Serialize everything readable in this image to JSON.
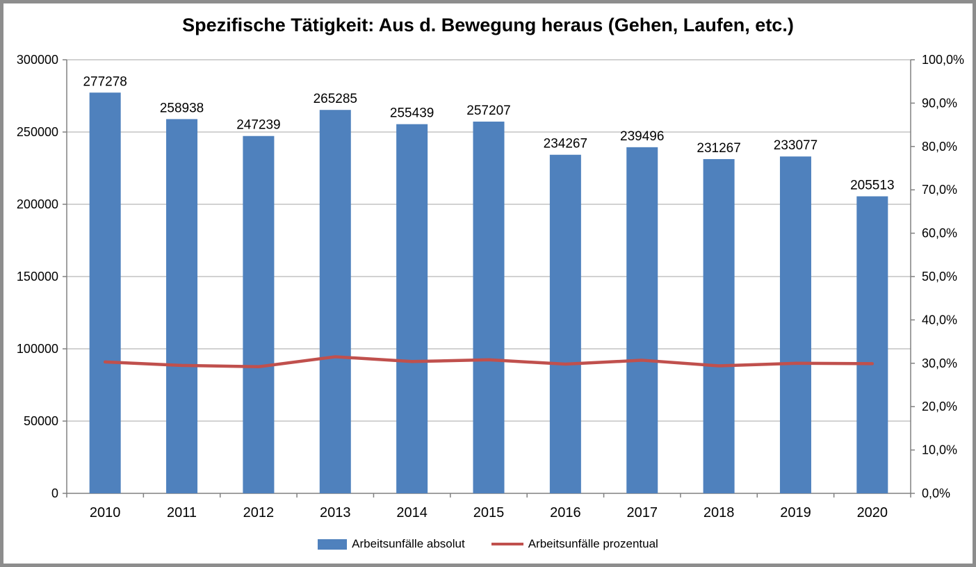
{
  "title": "Spezifische Tätigkeit: Aus d. Bewegung heraus (Gehen, Laufen, etc.)",
  "colors": {
    "bar": "#4F81BD",
    "line": "#C0504D",
    "axis": "#808080",
    "gridline": "#a6a6a6",
    "text": "#000000",
    "frame_border": "#8d8d8d",
    "background": "#ffffff"
  },
  "chart_data": {
    "type": "bar",
    "categories": [
      "2010",
      "2011",
      "2012",
      "2013",
      "2014",
      "2015",
      "2016",
      "2017",
      "2018",
      "2019",
      "2020"
    ],
    "series": [
      {
        "name": "Arbeitsunfälle absolut",
        "type": "bar",
        "axis": "left",
        "color": "#4F81BD",
        "values": [
          277278,
          258938,
          247239,
          265285,
          255439,
          257207,
          234267,
          239496,
          231267,
          233077,
          205513
        ],
        "data_labels": [
          "277278",
          "258938",
          "247239",
          "265285",
          "255439",
          "257207",
          "234267",
          "239496",
          "231267",
          "233077",
          "205513"
        ]
      },
      {
        "name": "Arbeitsunfälle prozentual",
        "type": "line",
        "axis": "right",
        "color": "#C0504D",
        "values_percent": [
          30.3,
          29.5,
          29.2,
          31.5,
          30.4,
          30.8,
          29.8,
          30.7,
          29.4,
          30.0,
          29.9
        ]
      }
    ],
    "title": "Spezifische Tätigkeit: Aus d. Bewegung heraus (Gehen, Laufen, etc.)",
    "xlabel": "",
    "ylabel": "",
    "left_axis": {
      "min": 0,
      "max": 300000,
      "step": 50000,
      "tick_labels": [
        "300000",
        "250000",
        "200000",
        "150000",
        "100000",
        "50000",
        "0"
      ]
    },
    "right_axis": {
      "min": 0,
      "max": 100,
      "step": 10,
      "tick_labels": [
        "100,0%",
        "90,0%",
        "80,0%",
        "70,0%",
        "60,0%",
        "50,0%",
        "40,0%",
        "30,0%",
        "20,0%",
        "10,0%",
        "0,0%"
      ]
    },
    "grid": true,
    "data_labels_on": true,
    "legend_position": "bottom"
  },
  "legend": {
    "items": [
      {
        "label": "Arbeitsunfälle absolut",
        "color": "#4F81BD",
        "swatch": "rect"
      },
      {
        "label": "Arbeitsunfälle prozentual",
        "color": "#C0504D",
        "swatch": "line"
      }
    ]
  }
}
